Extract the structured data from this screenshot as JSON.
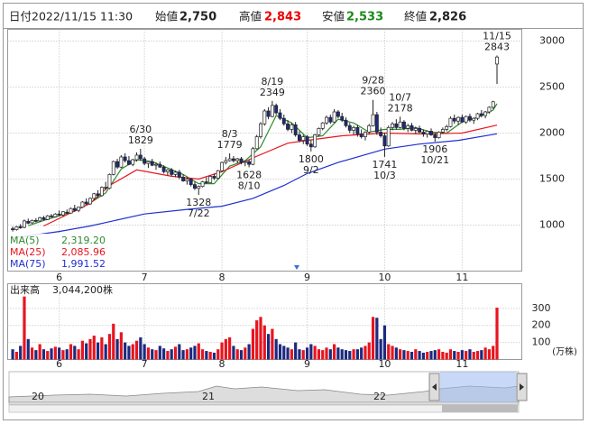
{
  "header": {
    "date_label": "日付",
    "date": "2022/11/15 11:30",
    "open_label": "始値",
    "open": "2,750",
    "high_label": "高値",
    "high": "2,843",
    "low_label": "安値",
    "low": "2,533",
    "close_label": "終値",
    "close": "2,826"
  },
  "chart_data": {
    "type": "candlestick",
    "grid": true,
    "xlim": [
      -1.3,
      131.4
    ],
    "xticks": [
      {
        "value": 12,
        "label": "6"
      },
      {
        "value": 34,
        "label": "7"
      },
      {
        "value": 54,
        "label": "8"
      },
      {
        "value": 76,
        "label": "9"
      },
      {
        "value": 96,
        "label": "10"
      },
      {
        "value": 116,
        "label": "11"
      }
    ],
    "ylim": [
      500,
      3127
    ],
    "yticks": [
      1000,
      1500,
      2000,
      2500,
      3000
    ],
    "up_color": "#ffffff",
    "down_color": "#1c2a80",
    "ohlc": [
      [
        960,
        985,
        930,
        950
      ],
      [
        950,
        990,
        940,
        980
      ],
      [
        985,
        1010,
        960,
        970
      ],
      [
        975,
        1060,
        965,
        1045
      ],
      [
        1040,
        1070,
        1010,
        1020
      ],
      [
        1025,
        1060,
        1015,
        1050
      ],
      [
        1050,
        1075,
        1030,
        1040
      ],
      [
        1045,
        1090,
        1035,
        1080
      ],
      [
        1080,
        1100,
        1050,
        1060
      ],
      [
        1060,
        1110,
        1055,
        1100
      ],
      [
        1100,
        1120,
        1080,
        1090
      ],
      [
        1090,
        1130,
        1085,
        1120
      ],
      [
        1120,
        1160,
        1100,
        1110
      ],
      [
        1110,
        1150,
        1090,
        1145
      ],
      [
        1140,
        1170,
        1120,
        1130
      ],
      [
        1130,
        1190,
        1125,
        1180
      ],
      [
        1180,
        1220,
        1150,
        1160
      ],
      [
        1160,
        1200,
        1140,
        1195
      ],
      [
        1195,
        1260,
        1185,
        1250
      ],
      [
        1250,
        1290,
        1220,
        1230
      ],
      [
        1230,
        1300,
        1220,
        1290
      ],
      [
        1290,
        1350,
        1270,
        1340
      ],
      [
        1340,
        1380,
        1300,
        1320
      ],
      [
        1320,
        1420,
        1310,
        1410
      ],
      [
        1410,
        1470,
        1380,
        1400
      ],
      [
        1400,
        1560,
        1390,
        1550
      ],
      [
        1550,
        1700,
        1540,
        1690
      ],
      [
        1690,
        1720,
        1610,
        1630
      ],
      [
        1630,
        1760,
        1620,
        1740
      ],
      [
        1740,
        1780,
        1680,
        1700
      ],
      [
        1700,
        1750,
        1650,
        1660
      ],
      [
        1660,
        1720,
        1640,
        1710
      ],
      [
        1710,
        1790,
        1690,
        1760
      ],
      [
        1760,
        1829,
        1700,
        1720
      ],
      [
        1720,
        1740,
        1650,
        1670
      ],
      [
        1670,
        1700,
        1620,
        1690
      ],
      [
        1690,
        1720,
        1640,
        1650
      ],
      [
        1650,
        1680,
        1600,
        1660
      ],
      [
        1660,
        1690,
        1620,
        1630
      ],
      [
        1630,
        1650,
        1560,
        1580
      ],
      [
        1580,
        1610,
        1540,
        1600
      ],
      [
        1600,
        1620,
        1530,
        1550
      ],
      [
        1550,
        1590,
        1520,
        1575
      ],
      [
        1575,
        1600,
        1500,
        1520
      ],
      [
        1520,
        1550,
        1470,
        1480
      ],
      [
        1480,
        1520,
        1440,
        1500
      ],
      [
        1500,
        1510,
        1420,
        1440
      ],
      [
        1440,
        1470,
        1380,
        1400
      ],
      [
        1400,
        1430,
        1328,
        1420
      ],
      [
        1420,
        1480,
        1410,
        1470
      ],
      [
        1470,
        1520,
        1450,
        1460
      ],
      [
        1460,
        1540,
        1455,
        1530
      ],
      [
        1530,
        1560,
        1490,
        1510
      ],
      [
        1510,
        1600,
        1500,
        1590
      ],
      [
        1590,
        1690,
        1580,
        1680
      ],
      [
        1680,
        1740,
        1660,
        1700
      ],
      [
        1700,
        1779,
        1690,
        1720
      ],
      [
        1720,
        1750,
        1680,
        1700
      ],
      [
        1700,
        1730,
        1670,
        1720
      ],
      [
        1720,
        1740,
        1660,
        1680
      ],
      [
        1680,
        1700,
        1640,
        1690
      ],
      [
        1690,
        1710,
        1628,
        1660
      ],
      [
        1660,
        1850,
        1650,
        1830
      ],
      [
        1830,
        1980,
        1820,
        1960
      ],
      [
        1960,
        2120,
        1940,
        2100
      ],
      [
        2100,
        2260,
        2080,
        2240
      ],
      [
        2240,
        2280,
        2150,
        2180
      ],
      [
        2180,
        2349,
        2170,
        2300
      ],
      [
        2300,
        2320,
        2200,
        2220
      ],
      [
        2220,
        2260,
        2140,
        2160
      ],
      [
        2160,
        2200,
        2080,
        2100
      ],
      [
        2100,
        2140,
        2020,
        2040
      ],
      [
        2040,
        2110,
        2000,
        2090
      ],
      [
        2090,
        2120,
        1960,
        1980
      ],
      [
        1980,
        2020,
        1900,
        1920
      ],
      [
        1920,
        1980,
        1880,
        1960
      ],
      [
        1960,
        1980,
        1860,
        1880
      ],
      [
        1880,
        1920,
        1800,
        1850
      ],
      [
        1850,
        1990,
        1840,
        1980
      ],
      [
        1980,
        2060,
        1960,
        2050
      ],
      [
        2050,
        2120,
        2030,
        2110
      ],
      [
        2110,
        2190,
        2090,
        2170
      ],
      [
        2170,
        2200,
        2100,
        2120
      ],
      [
        2120,
        2260,
        2110,
        2230
      ],
      [
        2230,
        2250,
        2160,
        2180
      ],
      [
        2180,
        2220,
        2120,
        2140
      ],
      [
        2140,
        2170,
        2060,
        2080
      ],
      [
        2080,
        2110,
        2000,
        2030
      ],
      [
        2030,
        2080,
        1980,
        2060
      ],
      [
        2060,
        2090,
        1960,
        1990
      ],
      [
        1990,
        2040,
        1940,
        1960
      ],
      [
        1960,
        2020,
        1920,
        2010
      ],
      [
        2010,
        2100,
        1990,
        2080
      ],
      [
        2080,
        2360,
        2070,
        2200
      ],
      [
        2200,
        2230,
        1980,
        2010
      ],
      [
        2010,
        2060,
        1950,
        1970
      ],
      [
        1970,
        2000,
        1741,
        1860
      ],
      [
        1860,
        2080,
        1850,
        2060
      ],
      [
        2060,
        2120,
        2030,
        2100
      ],
      [
        2100,
        2150,
        2040,
        2060
      ],
      [
        2060,
        2178,
        2050,
        2120
      ],
      [
        2120,
        2140,
        2030,
        2050
      ],
      [
        2050,
        2100,
        2010,
        2080
      ],
      [
        2080,
        2110,
        2020,
        2030
      ],
      [
        2030,
        2070,
        1990,
        2050
      ],
      [
        2050,
        2080,
        2000,
        2010
      ],
      [
        2010,
        2040,
        1960,
        1990
      ],
      [
        1990,
        2030,
        1950,
        2020
      ],
      [
        2020,
        2050,
        1970,
        1980
      ],
      [
        1980,
        2000,
        1906,
        1950
      ],
      [
        1950,
        2020,
        1940,
        2010
      ],
      [
        2010,
        2060,
        1990,
        2040
      ],
      [
        2040,
        2090,
        2020,
        2070
      ],
      [
        2070,
        2180,
        2060,
        2160
      ],
      [
        2160,
        2200,
        2100,
        2130
      ],
      [
        2130,
        2180,
        2090,
        2170
      ],
      [
        2170,
        2200,
        2110,
        2120
      ],
      [
        2120,
        2190,
        2100,
        2180
      ],
      [
        2180,
        2210,
        2120,
        2140
      ],
      [
        2140,
        2170,
        2100,
        2160
      ],
      [
        2160,
        2220,
        2140,
        2210
      ],
      [
        2210,
        2250,
        2170,
        2190
      ],
      [
        2190,
        2240,
        2160,
        2230
      ],
      [
        2230,
        2290,
        2210,
        2280
      ],
      [
        2280,
        2350,
        2260,
        2340
      ],
      [
        2750,
        2843,
        2533,
        2826
      ]
    ],
    "moving_averages": [
      {
        "name": "MA(5)",
        "color": "#2e8b2e",
        "latest": "2,319.20",
        "x": [
          4,
          8,
          12,
          16,
          20,
          24,
          28,
          32,
          36,
          40,
          44,
          48,
          52,
          56,
          60,
          64,
          68,
          72,
          76,
          80,
          84,
          88,
          92,
          96,
          100,
          104,
          108,
          112,
          116,
          120,
          124,
          125
        ],
        "values": [
          993,
          1050,
          1100,
          1150,
          1240,
          1350,
          1610,
          1710,
          1690,
          1620,
          1550,
          1450,
          1450,
          1640,
          1700,
          1850,
          2190,
          2110,
          1950,
          1970,
          2150,
          2110,
          2010,
          2040,
          2040,
          2060,
          2010,
          2000,
          2120,
          2170,
          2250,
          2319.2
        ]
      },
      {
        "name": "MA(25)",
        "color": "#e8141e",
        "latest": "2,085.96",
        "x": [
          8,
          20,
          25,
          32,
          41,
          48,
          54,
          62,
          71,
          76,
          85,
          96,
          106,
          116,
          125
        ],
        "values": [
          990,
          1235,
          1430,
          1600,
          1530,
          1500,
          1580,
          1730,
          1890,
          1920,
          1970,
          2000,
          1990,
          2000,
          2085.96
        ]
      },
      {
        "name": "MA(75)",
        "color": "#1f2fd0",
        "latest": "1,991.52",
        "x": [
          0,
          12,
          20,
          34,
          45,
          54,
          62,
          70,
          76,
          84,
          96,
          105,
          115,
          125
        ],
        "values": [
          860,
          930,
          990,
          1120,
          1170,
          1205,
          1290,
          1430,
          1560,
          1680,
          1825,
          1880,
          1920,
          1991.52
        ]
      }
    ],
    "annotations": [
      {
        "date": "6/30",
        "value": 1829
      },
      {
        "date": "7/22",
        "value": 1328
      },
      {
        "date": "8/3",
        "value": 1779
      },
      {
        "date": "8/10",
        "value": 1628
      },
      {
        "date": "8/19",
        "value": 2349
      },
      {
        "date": "9/2",
        "value": 1800
      },
      {
        "date": "9/28",
        "value": 2360
      },
      {
        "date": "10/3",
        "value": 1741
      },
      {
        "date": "10/7",
        "value": 2178
      },
      {
        "date": "10/21",
        "value": 1906
      },
      {
        "date": "11/15",
        "value": 2843
      }
    ],
    "volume": {
      "title": "出来高",
      "total": "3,044,200株",
      "unit": "(万株)",
      "ylim": [
        0,
        445
      ],
      "yticks": [
        100,
        200,
        300
      ],
      "up_color": "#e8141e",
      "down_color": "#1c2a80",
      "values": [
        60,
        45,
        80,
        370,
        120,
        70,
        55,
        90,
        60,
        50,
        65,
        75,
        70,
        55,
        60,
        90,
        80,
        60,
        110,
        95,
        120,
        140,
        100,
        130,
        90,
        150,
        210,
        120,
        160,
        100,
        80,
        90,
        110,
        130,
        90,
        70,
        60,
        55,
        80,
        65,
        50,
        60,
        75,
        90,
        55,
        60,
        70,
        80,
        95,
        60,
        50,
        45,
        40,
        60,
        100,
        120,
        130,
        80,
        60,
        55,
        70,
        90,
        180,
        230,
        250,
        200,
        150,
        180,
        120,
        90,
        80,
        70,
        60,
        100,
        60,
        55,
        70,
        90,
        80,
        60,
        55,
        70,
        60,
        90,
        70,
        60,
        55,
        50,
        60,
        60,
        70,
        80,
        100,
        250,
        245,
        120,
        200,
        90,
        80,
        70,
        60,
        55,
        50,
        45,
        60,
        50,
        40,
        45,
        50,
        55,
        60,
        45,
        40,
        60,
        50,
        45,
        55,
        50,
        60,
        45,
        50,
        55,
        70,
        60,
        80,
        304.42
      ]
    }
  },
  "navigator": {
    "labels": [
      "20",
      "21",
      "22"
    ]
  }
}
